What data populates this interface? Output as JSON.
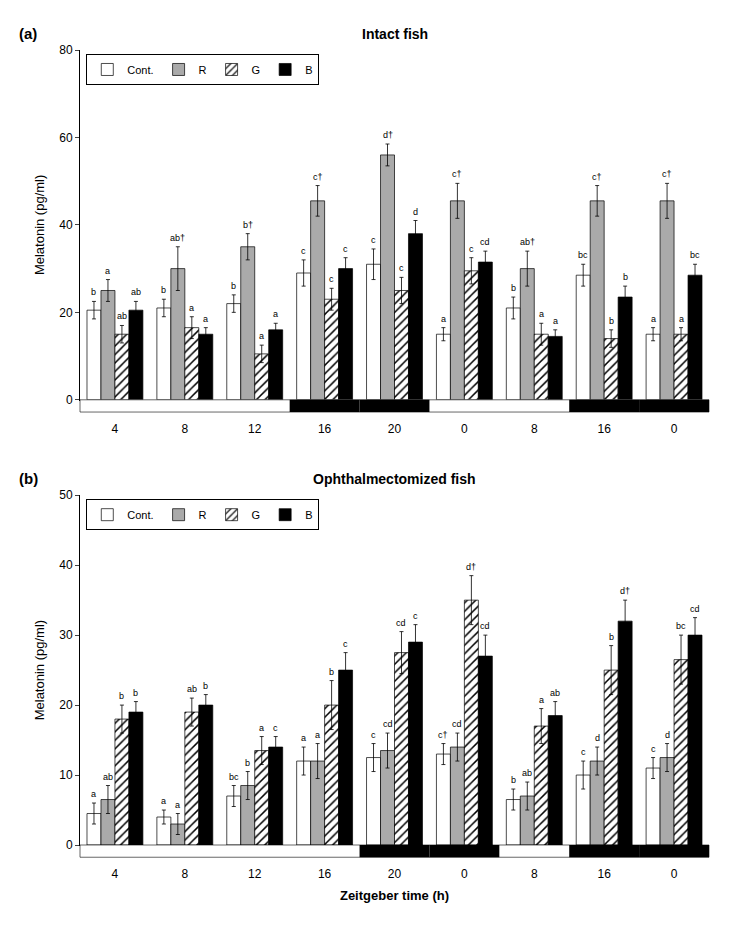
{
  "chart_data": [
    {
      "type": "bar",
      "title": "Intact fish",
      "panel_label": "(a)",
      "ylabel": "Melatonin (pg/ml)",
      "categories": [
        "4",
        "8",
        "12",
        "16",
        "20",
        "0",
        "8",
        "16",
        "0"
      ],
      "ylim": [
        0,
        80
      ],
      "yticks": [
        0,
        20,
        40,
        60,
        80
      ],
      "grid": false,
      "legend": "upper left",
      "light_dark": [
        0,
        0,
        0,
        1,
        1,
        0,
        0,
        1,
        1
      ],
      "series": [
        {
          "name": "Cont.",
          "color": "white",
          "values": [
            20.5,
            21.0,
            22.0,
            29.0,
            31.0,
            15.0,
            21.0,
            28.5,
            15.0
          ],
          "errors": [
            2.0,
            2.0,
            2.0,
            3.0,
            3.5,
            1.5,
            2.5,
            2.5,
            1.5
          ],
          "annotations": [
            "b",
            "b",
            "b",
            "c",
            "c",
            "a",
            "b",
            "bc",
            "a"
          ]
        },
        {
          "name": "R",
          "color": "#aaaaaa",
          "values": [
            25.0,
            30.0,
            35.0,
            45.5,
            56.0,
            45.5,
            30.0,
            45.5,
            45.5
          ],
          "errors": [
            2.5,
            5.0,
            3.0,
            3.5,
            2.5,
            4.0,
            4.0,
            3.5,
            4.0
          ],
          "annotations": [
            "a",
            "ab†",
            "b†",
            "c†",
            "d†",
            "c†",
            "ab†",
            "c†",
            "c†"
          ]
        },
        {
          "name": "G",
          "color": "white",
          "marker": "hatch",
          "values": [
            15.0,
            16.5,
            10.5,
            23.0,
            25.0,
            29.5,
            15.0,
            14.0,
            15.0
          ],
          "errors": [
            2.0,
            2.5,
            2.0,
            2.5,
            3.0,
            3.0,
            2.5,
            2.0,
            1.5
          ],
          "annotations": [
            "ab",
            "a",
            "a",
            "c",
            "c",
            "c",
            "a",
            "b",
            "a"
          ]
        },
        {
          "name": "B",
          "color": "black",
          "values": [
            20.5,
            15.0,
            16.0,
            30.0,
            38.0,
            31.5,
            14.5,
            23.5,
            28.5
          ],
          "errors": [
            2.0,
            1.5,
            1.5,
            2.5,
            3.0,
            2.5,
            1.5,
            2.5,
            2.5
          ],
          "annotations": [
            "ab",
            "a",
            "a",
            "c",
            "d",
            "cd",
            "a",
            "b",
            "bc"
          ]
        }
      ]
    },
    {
      "type": "bar",
      "title": "Ophthalmectomized fish",
      "panel_label": "(b)",
      "ylabel": "Melatonin (pg/ml)",
      "xlabel": "Zeitgeber time (h)",
      "categories": [
        "4",
        "8",
        "12",
        "16",
        "20",
        "0",
        "8",
        "16",
        "0"
      ],
      "ylim": [
        0,
        50
      ],
      "yticks": [
        0,
        10,
        20,
        30,
        40,
        50
      ],
      "grid": false,
      "legend": "upper left",
      "light_dark": [
        0,
        0,
        0,
        0,
        1,
        1,
        0,
        1,
        1
      ],
      "series": [
        {
          "name": "Cont.",
          "color": "white",
          "values": [
            4.5,
            4.0,
            7.0,
            12.0,
            12.5,
            13.0,
            6.5,
            10.0,
            11.0
          ],
          "errors": [
            1.5,
            1.0,
            1.5,
            2.0,
            2.0,
            1.5,
            1.5,
            2.0,
            1.5
          ],
          "annotations": [
            "a",
            "a",
            "bc",
            "a",
            "c",
            "c†",
            "b",
            "c",
            "c"
          ]
        },
        {
          "name": "R",
          "color": "#aaaaaa",
          "values": [
            6.5,
            3.0,
            8.5,
            12.0,
            13.5,
            14.0,
            7.0,
            12.0,
            12.5
          ],
          "errors": [
            2.0,
            1.5,
            2.0,
            2.5,
            2.5,
            2.0,
            2.0,
            2.0,
            2.0
          ],
          "annotations": [
            "ab",
            "a",
            "b",
            "a",
            "cd",
            "cd",
            "ab",
            "d",
            "d"
          ]
        },
        {
          "name": "G",
          "color": "white",
          "marker": "hatch",
          "values": [
            18.0,
            19.0,
            13.5,
            20.0,
            27.5,
            35.0,
            17.0,
            25.0,
            26.5
          ],
          "errors": [
            2.0,
            2.0,
            2.0,
            3.5,
            3.0,
            3.5,
            2.5,
            3.5,
            3.5
          ],
          "annotations": [
            "b",
            "ab",
            "a",
            "b",
            "cd",
            "d†",
            "a",
            "b",
            "bc"
          ]
        },
        {
          "name": "B",
          "color": "black",
          "values": [
            19.0,
            20.0,
            14.0,
            25.0,
            29.0,
            27.0,
            18.5,
            32.0,
            30.0
          ],
          "errors": [
            1.5,
            1.5,
            1.5,
            2.5,
            2.5,
            3.0,
            2.0,
            3.0,
            2.5
          ],
          "annotations": [
            "b",
            "b",
            "c",
            "c",
            "c",
            "cd",
            "ab",
            "d†",
            "cd"
          ]
        }
      ]
    }
  ]
}
